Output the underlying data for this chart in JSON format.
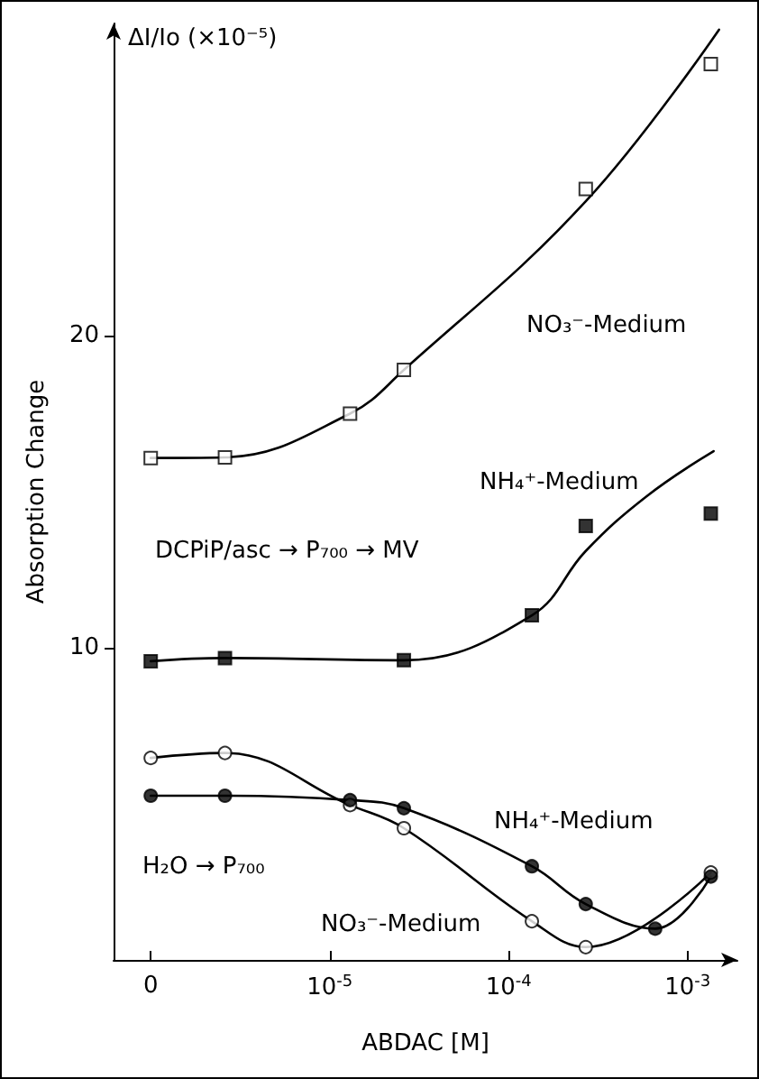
{
  "chart_data": {
    "type": "line",
    "xlabel": "ABDAC [M]",
    "ylabel": "Absorption Change",
    "log": "x",
    "xlim": [
      6.2e-07,
      0.0019
    ],
    "ylim": [
      0,
      30
    ],
    "xticks": [
      {
        "value": 1e-06,
        "label": "0"
      },
      {
        "value": 1e-05,
        "label": "10$^{-5}$"
      },
      {
        "value": 0.0001,
        "label": "10$^{-4}$"
      },
      {
        "value": 0.001,
        "label": "10$^{-3}$"
      }
    ],
    "yticks": [
      10,
      20
    ],
    "series": [
      {
        "type": "scatter",
        "marker": "square",
        "color": "#ffffff",
        "x": [
          1e-06,
          2.6e-06,
          1.3e-05,
          2.6e-05,
          0.00027,
          0.00135
        ],
        "values": [
          16.08,
          16.1,
          17.5,
          18.9,
          24.7,
          28.7
        ]
      },
      {
        "color": "#000000",
        "x": [
          1e-06,
          2.6e-06,
          1.3e-05,
          2.6e-05,
          0.00027,
          0.0015
        ],
        "values": [
          16.08,
          16.1,
          17.5,
          18.9,
          24.3,
          29.8
        ]
      },
      {
        "type": "scatter",
        "marker": "square",
        "color": "#000000",
        "x": [
          1e-06,
          2.6e-06,
          2.6e-05,
          0.000135,
          0.00027,
          0.00135
        ],
        "values": [
          9.57,
          9.67,
          9.6,
          11.04,
          13.9,
          14.3
        ]
      },
      {
        "color": "#000000",
        "x": [
          1e-06,
          2.6e-06,
          2.6e-05,
          0.000135,
          0.00027,
          0.00059,
          0.0014
        ],
        "values": [
          9.57,
          9.67,
          9.6,
          11.04,
          13.1,
          14.85,
          16.3
        ]
      },
      {
        "type": "scatter",
        "marker": "circle",
        "color": "#ffffff",
        "x": [
          1e-06,
          2.6e-06,
          1.3e-05,
          2.6e-05,
          0.000135,
          0.00027,
          0.00135
        ],
        "values": [
          6.47,
          6.63,
          4.96,
          4.22,
          1.24,
          0.41,
          2.8
        ]
      },
      {
        "color": "#000000",
        "x": [
          1e-06,
          2.6e-06,
          1.3e-05,
          2.6e-05,
          0.000135,
          0.00027,
          0.00135
        ],
        "values": [
          6.47,
          6.63,
          4.96,
          4.22,
          1.24,
          0.41,
          2.8
        ]
      },
      {
        "type": "scatter",
        "marker": "circle",
        "color": "#000000",
        "x": [
          1e-06,
          2.6e-06,
          1.3e-05,
          2.6e-05,
          0.000135,
          0.00027,
          0.00066,
          0.00135
        ],
        "values": [
          5.26,
          5.26,
          5.12,
          4.86,
          3.0,
          1.79,
          1.0,
          2.67
        ]
      },
      {
        "color": "#000000",
        "x": [
          1e-06,
          2.6e-06,
          1.3e-05,
          2.6e-05,
          0.000135,
          0.00027,
          0.00066,
          0.00135
        ],
        "values": [
          5.26,
          5.26,
          5.12,
          4.86,
          3.0,
          1.79,
          1.0,
          2.67
        ]
      }
    ],
    "annotations": [
      "ΔI/Io (×10⁻⁵)",
      "NO₃⁻-Medium",
      "NH₄⁺-Medium",
      "DCPiP/asc → P₇₀₀ → MV",
      "NH₄⁺-Medium",
      "H₂O → P₇₀₀",
      "NO₃⁻-Medium"
    ]
  }
}
